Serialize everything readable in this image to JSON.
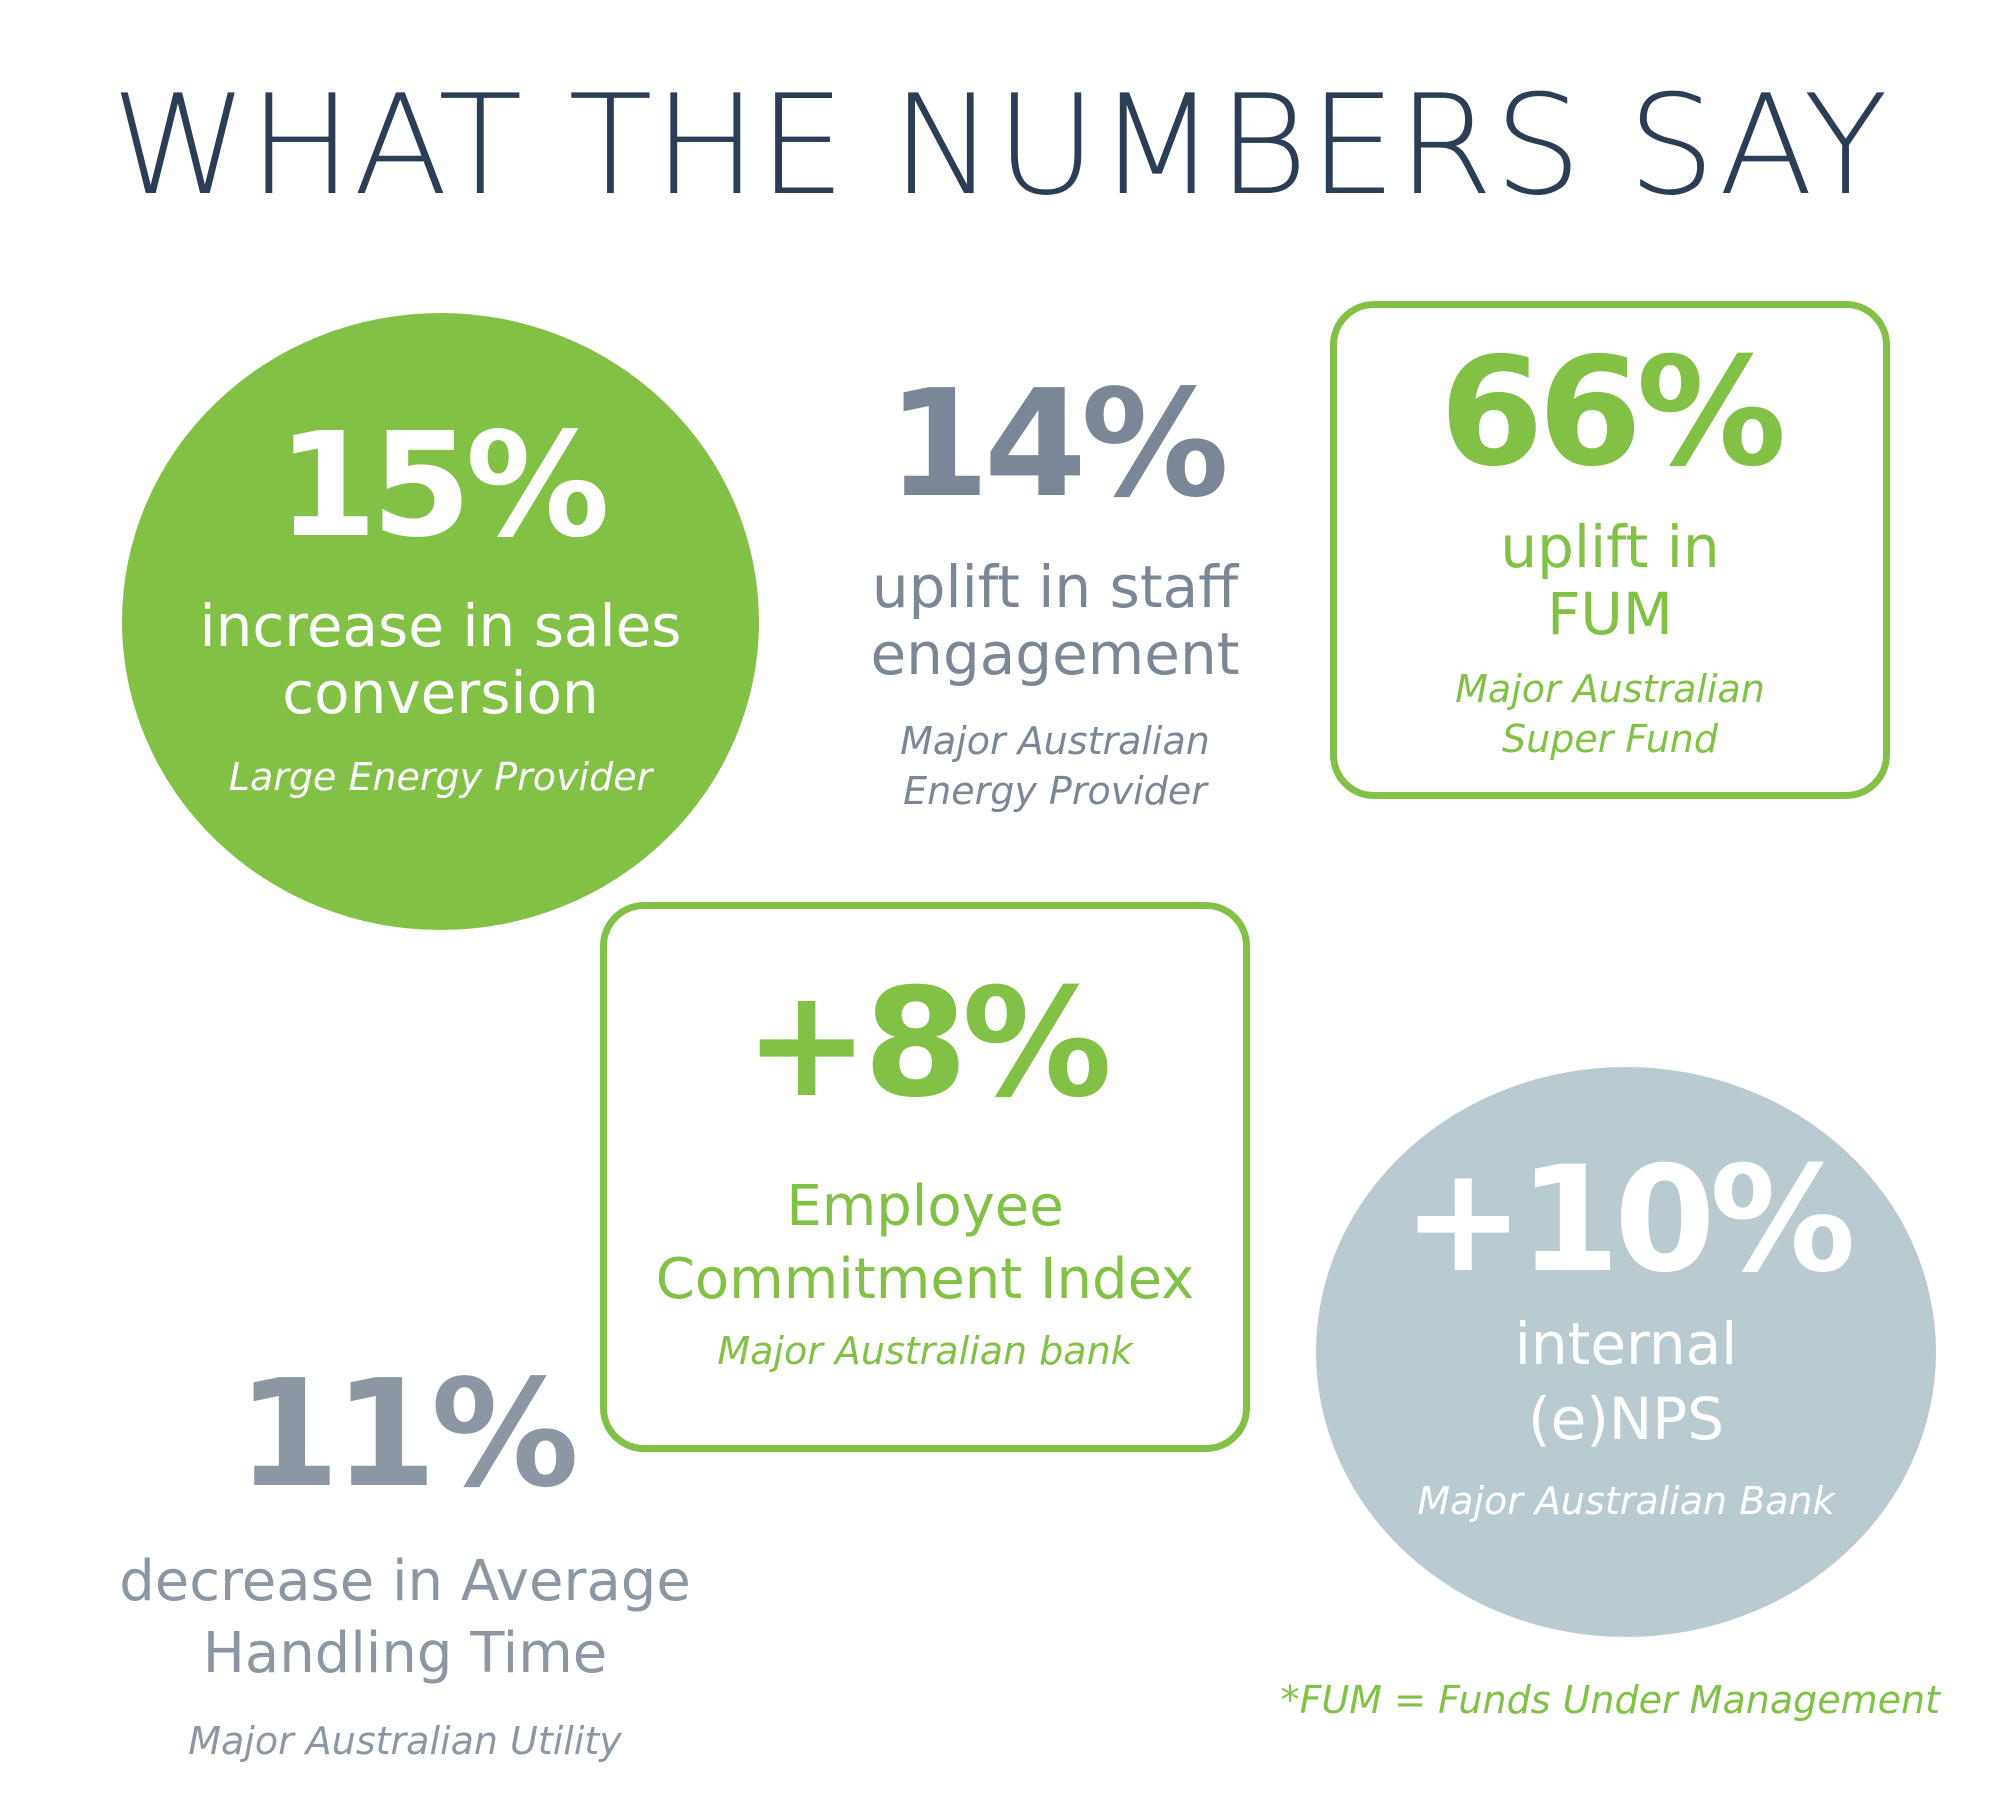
{
  "title": "WHAT THE NUMBERS SAY",
  "stats": [
    {
      "value": "15%",
      "description_line1": "increase in sales",
      "description_line2": "conversion",
      "source": "Large Energy Provider",
      "style": "green-circle"
    },
    {
      "value": "14%",
      "description_line1": "uplift in staff",
      "description_line2": "engagement",
      "source_line1": "Major Australian",
      "source_line2": "Energy Provider",
      "style": "plain-grey"
    },
    {
      "value": "66%",
      "description_line1": "uplift in",
      "description_line2": "FUM",
      "source_line1": "Major Australian",
      "source_line2": "Super Fund",
      "style": "green-outline-box"
    },
    {
      "value": "+8%",
      "description_line1": "Employee",
      "description_line2": "Commitment Index",
      "source": "Major Australian bank",
      "style": "green-outline-box"
    },
    {
      "value": "+10%",
      "description_line1": "internal",
      "description_line2": "(e)NPS",
      "source": "Major Australian Bank",
      "style": "grey-circle"
    },
    {
      "value": "11%",
      "description_line1": "decrease in Average",
      "description_line2": "Handling Time",
      "source": "Major Australian Utility",
      "style": "plain-grey"
    }
  ],
  "footnote": "*FUM = Funds Under Management",
  "colors": {
    "green": "#81c145",
    "navy": "#2c3e55",
    "grey_text": "#7b8696",
    "grey_circle": "#b9cad1",
    "white": "#ffffff"
  }
}
